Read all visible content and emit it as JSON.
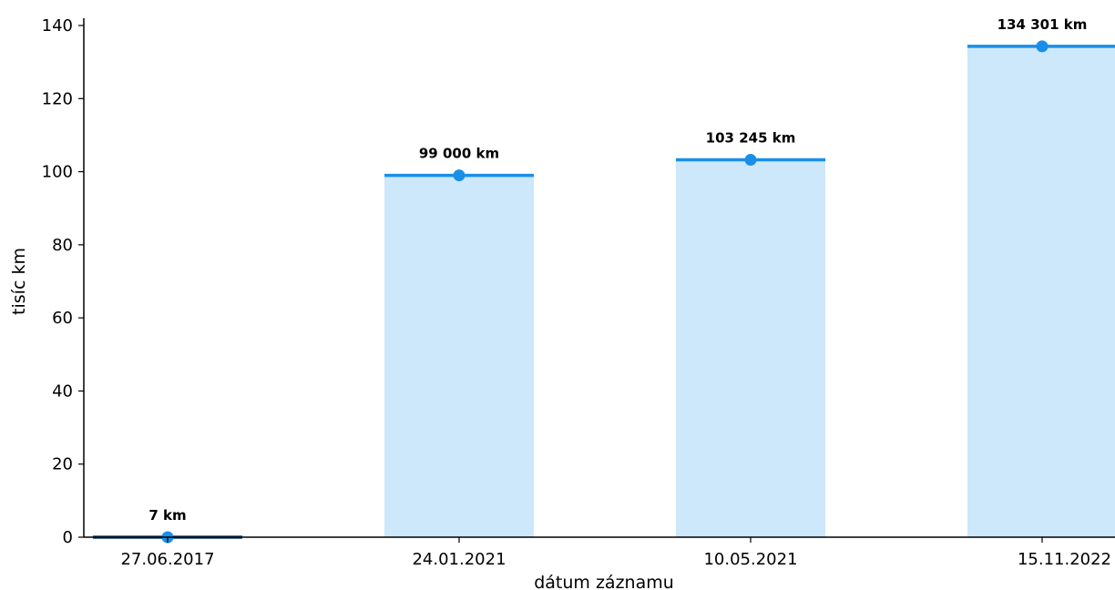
{
  "chart_data": {
    "type": "bar",
    "categories": [
      "27.06.2017",
      "24.01.2021",
      "10.05.2021",
      "15.11.2022"
    ],
    "values": [
      0.007,
      99.0,
      103.245,
      134.301
    ],
    "data_labels": [
      "7 km",
      "99 000 km",
      "103 245 km",
      "134 301 km"
    ],
    "xlabel": "dátum záznamu",
    "ylabel": "tisíc km",
    "ylim": [
      0,
      140
    ],
    "yticks": [
      0,
      20,
      40,
      60,
      80,
      100,
      120,
      140
    ],
    "grid": false,
    "legend": "none",
    "colors": {
      "bar_fill": "#cde7fb",
      "bar_top_line": "#1a8fe8",
      "first_bar_line": "#0d4a7a",
      "marker": "#1a8fe8",
      "axis": "#000000"
    }
  }
}
